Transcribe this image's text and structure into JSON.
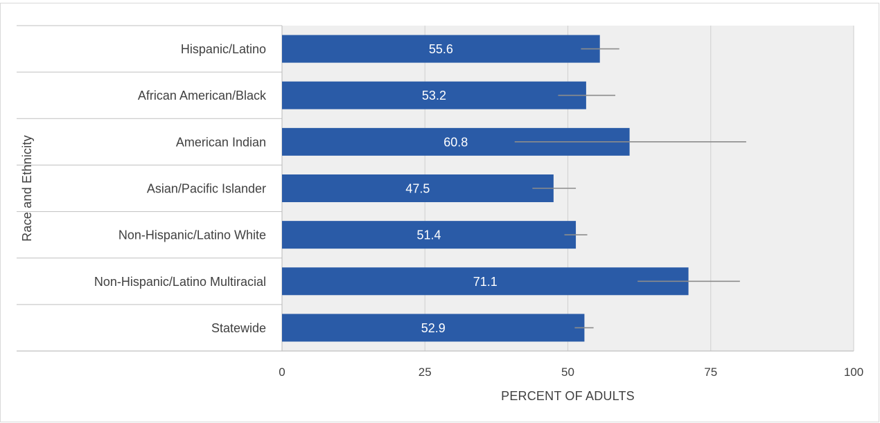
{
  "chart_data": {
    "type": "bar",
    "orientation": "horizontal",
    "categories": [
      "Hispanic/Latino",
      "African American/Black",
      "American Indian",
      "Asian/Pacific Islander",
      "Non-Hispanic/Latino White",
      "Non-Hispanic/Latino Multiracial",
      "Statewide"
    ],
    "values": [
      55.6,
      53.2,
      60.8,
      47.5,
      51.4,
      71.1,
      52.9
    ],
    "error_bars": [
      [
        52.3,
        59.0
      ],
      [
        48.3,
        58.3
      ],
      [
        40.7,
        81.2
      ],
      [
        43.8,
        51.4
      ],
      [
        49.4,
        53.4
      ],
      [
        62.2,
        80.1
      ],
      [
        51.2,
        54.5
      ]
    ],
    "xlabel": "PERCENT OF ADULTS",
    "ylabel": "Race and Ethnicity",
    "xlim": [
      0,
      100
    ],
    "xticks": [
      0,
      25,
      50,
      75,
      100
    ],
    "grid": true,
    "colors": {
      "bar": "#2a5ba7",
      "error_bar": "#8c8c8c",
      "plot_background": "#efefef",
      "gridline": "#d4d4d4",
      "axis_line": "#bfbfbf",
      "data_label": "#ffffff",
      "text": "#404040"
    }
  }
}
